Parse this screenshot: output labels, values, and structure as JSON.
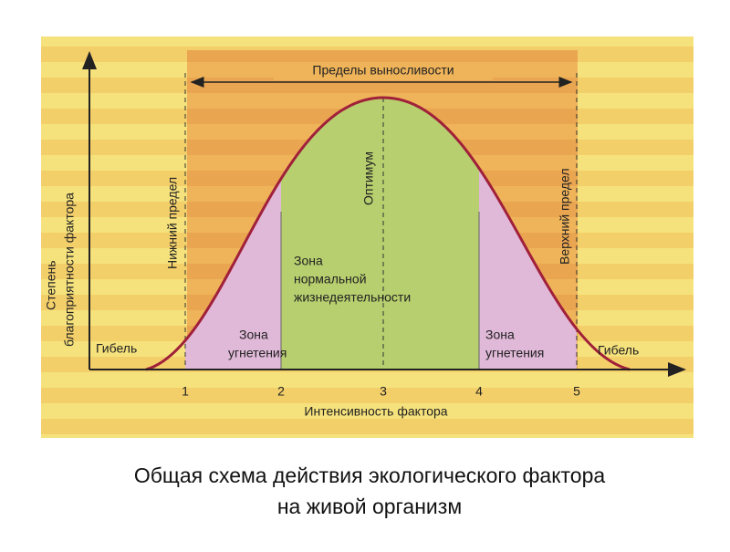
{
  "diagram": {
    "top_label": "Пределы выносливости",
    "y_axis_label": [
      "Степень",
      "благоприятности фактора"
    ],
    "x_axis_label": "Интенсивность фактора",
    "x_ticks": [
      "1",
      "2",
      "3",
      "4",
      "5"
    ],
    "lower_limit": "Нижний предел",
    "optimum": "Оптимум",
    "upper_limit": "Верхний предел",
    "normal_zone": [
      "Зона",
      "нормальной",
      "жизнедеятельности"
    ],
    "left_oppression_zone": [
      "Зона",
      "угнетения"
    ],
    "right_oppression_zone": [
      "Зона",
      "угнетения"
    ],
    "left_death": "Гибель",
    "right_death": "Гибель"
  },
  "caption": [
    "Общая схема действия экологического фактора",
    "на живой организм"
  ]
}
